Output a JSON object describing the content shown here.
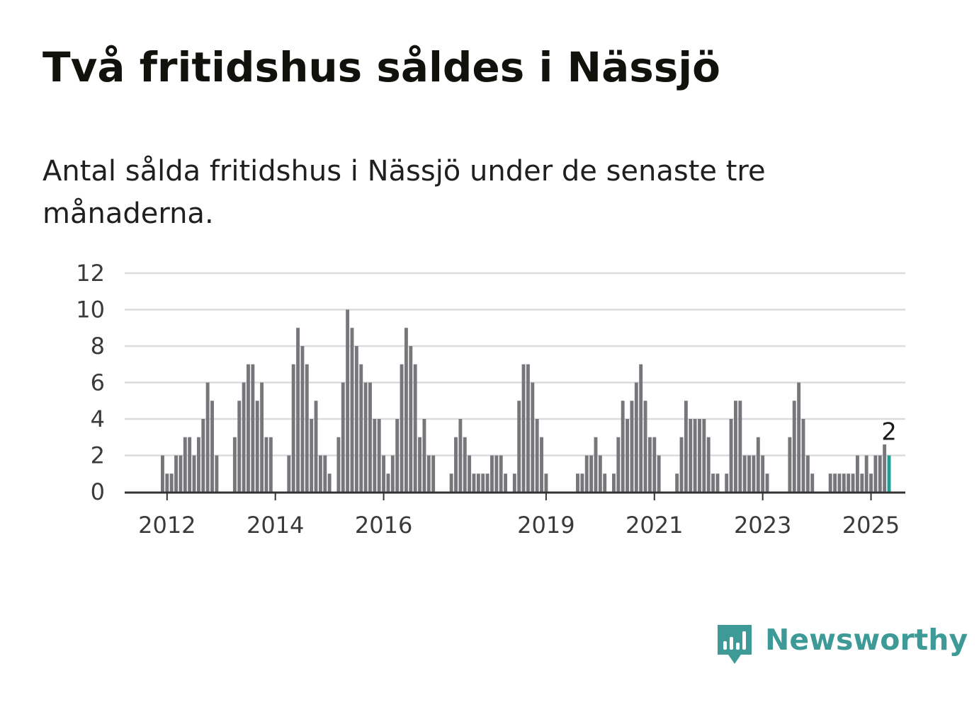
{
  "title": "Två fritidshus såldes i Nässjö",
  "subtitle": "Antal sålda fritidshus i Nässjö under de senaste tre månaderna.",
  "brand": {
    "name": "Newsworthy",
    "color": "#3d9a96"
  },
  "colors": {
    "bar": "#77767b",
    "highlight": "#1f9e98",
    "grid": "#dcdcdc",
    "axis": "#333333"
  },
  "chart_data": {
    "type": "bar",
    "title": "Två fritidshus såldes i Nässjö",
    "xlabel": "",
    "ylabel": "",
    "ylim": [
      0,
      12
    ],
    "yticks": [
      "0",
      "2",
      "4",
      "6",
      "8",
      "10",
      "12"
    ],
    "xticks": [
      "2012",
      "2014",
      "2016",
      "2019",
      "2021",
      "2023",
      "2025"
    ],
    "grid": true,
    "legend": "none",
    "highlight_label": "2",
    "start": "2011-12",
    "values": [
      2,
      1,
      1,
      2,
      2,
      3,
      3,
      2,
      3,
      4,
      6,
      5,
      2,
      0,
      0,
      0,
      3,
      5,
      6,
      7,
      7,
      5,
      6,
      3,
      3,
      0,
      0,
      0,
      2,
      7,
      9,
      8,
      7,
      4,
      5,
      2,
      2,
      1,
      0,
      3,
      6,
      10,
      9,
      8,
      7,
      6,
      6,
      4,
      4,
      2,
      1,
      2,
      4,
      7,
      9,
      8,
      7,
      3,
      4,
      2,
      2,
      0,
      0,
      0,
      1,
      3,
      4,
      3,
      2,
      1,
      1,
      1,
      1,
      2,
      2,
      2,
      1,
      0,
      1,
      5,
      7,
      7,
      6,
      4,
      3,
      1,
      0,
      0,
      0,
      0,
      0,
      0,
      1,
      1,
      2,
      2,
      3,
      2,
      1,
      0,
      1,
      3,
      5,
      4,
      5,
      6,
      7,
      5,
      3,
      3,
      2,
      0,
      0,
      0,
      1,
      3,
      5,
      4,
      4,
      4,
      4,
      3,
      1,
      1,
      0,
      1,
      4,
      5,
      5,
      2,
      2,
      2,
      3,
      2,
      1,
      0,
      0,
      0,
      0,
      3,
      5,
      6,
      4,
      2,
      1,
      0,
      0,
      0,
      1,
      1,
      1,
      1,
      1,
      1,
      2,
      1,
      2,
      1,
      2,
      2,
      2.6,
      2
    ]
  }
}
